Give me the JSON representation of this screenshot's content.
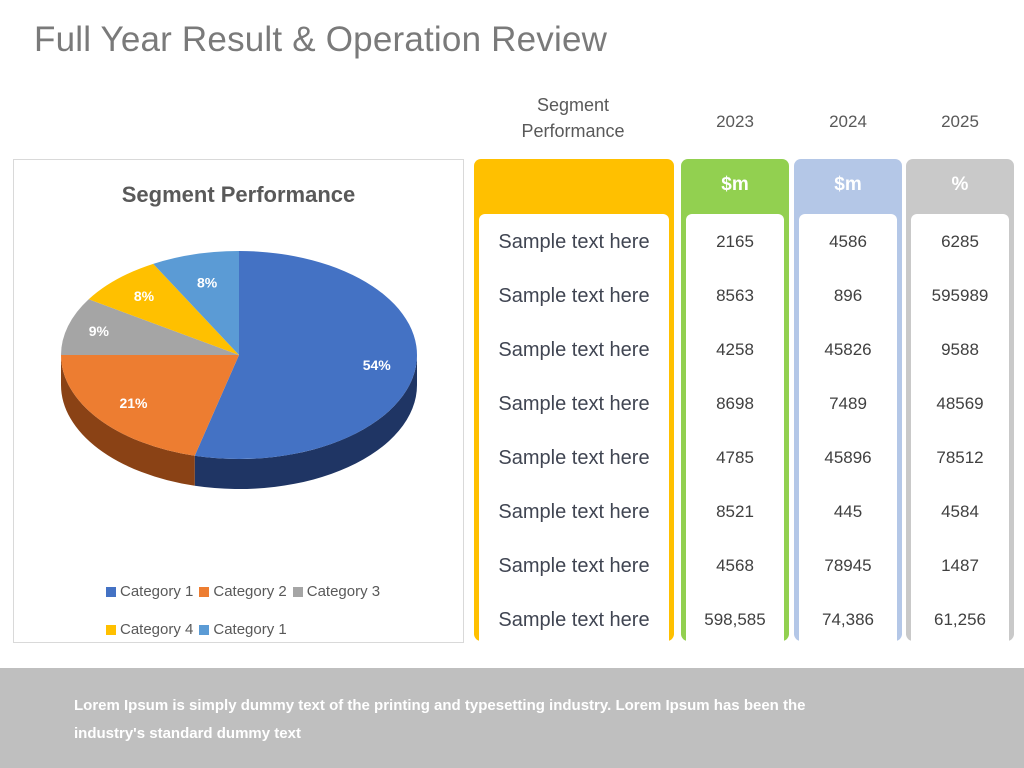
{
  "page": {
    "title": "Full Year Result & Operation Review",
    "footer_text": "Lorem Ipsum is simply dummy text of the printing and typesetting industry. Lorem Ipsum has been the industry's standard dummy text"
  },
  "colors": {
    "segment_column": "#FFC000",
    "year_2023": "#92D050",
    "year_2024": "#B4C7E7",
    "year_2025": "#C9C9C9",
    "footer_bg": "#BFBFBF"
  },
  "chart_data": {
    "type": "pie",
    "title": "Segment Performance",
    "style": "3d",
    "legend_position": "bottom",
    "slices": [
      {
        "label": "Category 1",
        "value": 54,
        "display": "54%",
        "color": "#4472C4",
        "side_color": "#1F3564"
      },
      {
        "label": "Category 2",
        "value": 21,
        "display": "21%",
        "color": "#ED7D31",
        "side_color": "#8A4215"
      },
      {
        "label": "Category 3",
        "value": 9,
        "display": "9%",
        "color": "#A5A5A5",
        "side_color": "#666666"
      },
      {
        "label": "Category 4",
        "value": 8,
        "display": "8%",
        "color": "#FFC000",
        "side_color": "#9C7600"
      },
      {
        "label": "Category 1",
        "value": 8,
        "display": "8%",
        "color": "#5B9BD5",
        "side_color": "#2E5A84"
      }
    ]
  },
  "table": {
    "headers": {
      "segment": "Segment Performance",
      "years": [
        "2023",
        "2024",
        "2025"
      ],
      "units": [
        "$m",
        "$m",
        "%"
      ]
    },
    "rows": [
      {
        "label": "Sample text here",
        "values": [
          "2165",
          "4586",
          "6285"
        ]
      },
      {
        "label": "Sample text here",
        "values": [
          "8563",
          "896",
          "595989"
        ]
      },
      {
        "label": "Sample text here",
        "values": [
          "4258",
          "45826",
          "9588"
        ]
      },
      {
        "label": "Sample text here",
        "values": [
          "8698",
          "7489",
          "48569"
        ]
      },
      {
        "label": "Sample text here",
        "values": [
          "4785",
          "45896",
          "78512"
        ]
      },
      {
        "label": "Sample text here",
        "values": [
          "8521",
          "445",
          "4584"
        ]
      },
      {
        "label": "Sample text here",
        "values": [
          "4568",
          "78945",
          "1487"
        ]
      },
      {
        "label": "Sample text here",
        "values": [
          "598,585",
          "74,386",
          "61,256"
        ]
      }
    ]
  }
}
